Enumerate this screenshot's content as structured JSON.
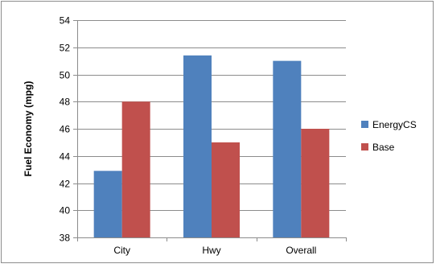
{
  "chart_data": {
    "type": "bar",
    "categories": [
      "City",
      "Hwy",
      "Overall"
    ],
    "series": [
      {
        "name": "EnergyCS",
        "color": "#4F81BD",
        "values": [
          42.9,
          51.4,
          51.0
        ]
      },
      {
        "name": "Base",
        "color": "#C0504D",
        "values": [
          48.0,
          45.0,
          46.0
        ]
      }
    ],
    "xlabel": "",
    "ylabel": "Fuel Economy (mpg)",
    "ylim": [
      38,
      54
    ],
    "yticks": [
      38,
      40,
      42,
      44,
      46,
      48,
      50,
      52,
      54
    ],
    "grid": true,
    "legend": "right"
  }
}
